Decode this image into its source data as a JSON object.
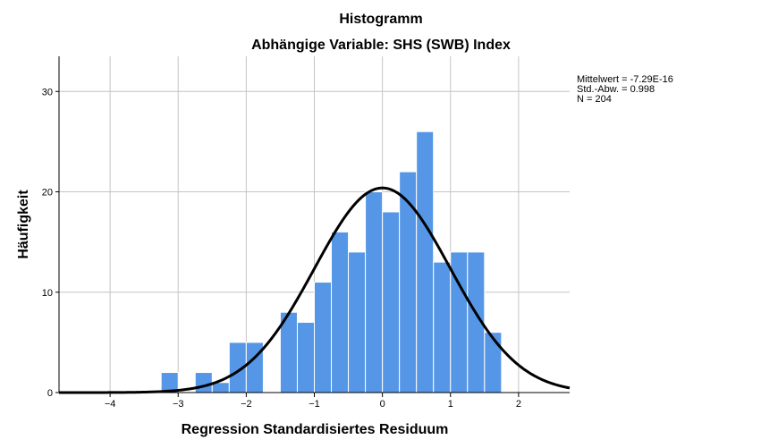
{
  "chart_data": {
    "type": "bar",
    "title": "Histogramm",
    "subtitle": "Abhängige Variable: SHS (SWB) Index",
    "xlabel": "Regression Standardisiertes Residuum",
    "ylabel": "Häufigkeit",
    "xlim": [
      -4.75,
      2.75
    ],
    "ylim": [
      0,
      33.5
    ],
    "x_ticks": [
      -4,
      -3,
      -2,
      -1,
      0,
      1,
      2
    ],
    "x_tick_labels": [
      "−4",
      "−3",
      "−2",
      "−1",
      "0",
      "1",
      "2"
    ],
    "y_ticks": [
      0,
      10,
      20,
      30
    ],
    "y_tick_labels": [
      "0",
      "10",
      "20",
      "30"
    ],
    "grid": true,
    "bin_width": 0.25,
    "bins": [
      {
        "x0": -3.25,
        "value": 2
      },
      {
        "x0": -2.75,
        "value": 2
      },
      {
        "x0": -2.5,
        "value": 1
      },
      {
        "x0": -2.25,
        "value": 5
      },
      {
        "x0": -2.0,
        "value": 5
      },
      {
        "x0": -1.5,
        "value": 8
      },
      {
        "x0": -1.25,
        "value": 7
      },
      {
        "x0": -1.0,
        "value": 11
      },
      {
        "x0": -0.75,
        "value": 16
      },
      {
        "x0": -0.5,
        "value": 14
      },
      {
        "x0": -0.25,
        "value": 20
      },
      {
        "x0": 0.0,
        "value": 18
      },
      {
        "x0": 0.25,
        "value": 22
      },
      {
        "x0": 0.5,
        "value": 26
      },
      {
        "x0": 0.75,
        "value": 13
      },
      {
        "x0": 1.0,
        "value": 14
      },
      {
        "x0": 1.25,
        "value": 14
      },
      {
        "x0": 1.5,
        "value": 6
      }
    ],
    "normal_curve": {
      "mean": -7.29e-16,
      "sd": 0.998,
      "n": 204
    },
    "bar_color": "#5596e6",
    "curve_color": "#000000"
  },
  "stats": {
    "mean_label": "Mittelwert = -7.29E-16",
    "sd_label": "Std.-Abw. = 0.998",
    "n_label": "N = 204"
  }
}
